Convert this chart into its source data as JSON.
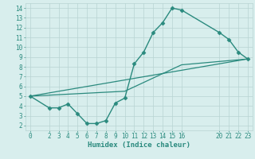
{
  "xlabel": "Humidex (Indice chaleur)",
  "line_zigzag": {
    "x": [
      0,
      2,
      3,
      4,
      5,
      6,
      7,
      8,
      9,
      10,
      11,
      12,
      13,
      14,
      15,
      16,
      20,
      21,
      22,
      23
    ],
    "y": [
      5,
      3.8,
      3.8,
      4.2,
      3.2,
      2.2,
      2.2,
      2.5,
      4.3,
      4.8,
      8.3,
      9.5,
      11.5,
      12.5,
      14.0,
      13.8,
      11.5,
      10.8,
      9.5,
      8.8
    ],
    "color": "#2a8a7e",
    "marker": "D",
    "markersize": 2.5,
    "linewidth": 1.0
  },
  "line_straight1": {
    "x": [
      0,
      10,
      16,
      23
    ],
    "y": [
      5,
      5.5,
      8.2,
      8.8
    ],
    "color": "#2a8a7e",
    "linewidth": 0.9
  },
  "line_straight2": {
    "x": [
      0,
      23
    ],
    "y": [
      5,
      8.8
    ],
    "color": "#2a8a7e",
    "linewidth": 0.9
  },
  "xlim": [
    -0.5,
    23.5
  ],
  "ylim": [
    1.5,
    14.5
  ],
  "xticks": [
    0,
    2,
    3,
    4,
    5,
    6,
    7,
    8,
    9,
    10,
    11,
    12,
    13,
    14,
    15,
    16,
    20,
    21,
    22,
    23
  ],
  "yticks": [
    2,
    3,
    4,
    5,
    6,
    7,
    8,
    9,
    10,
    11,
    12,
    13,
    14
  ],
  "bg_color": "#d8eeed",
  "grid_color": "#b8d4d2",
  "line_color": "#2a8a7e",
  "label_fontsize": 6.5,
  "tick_fontsize": 5.5
}
